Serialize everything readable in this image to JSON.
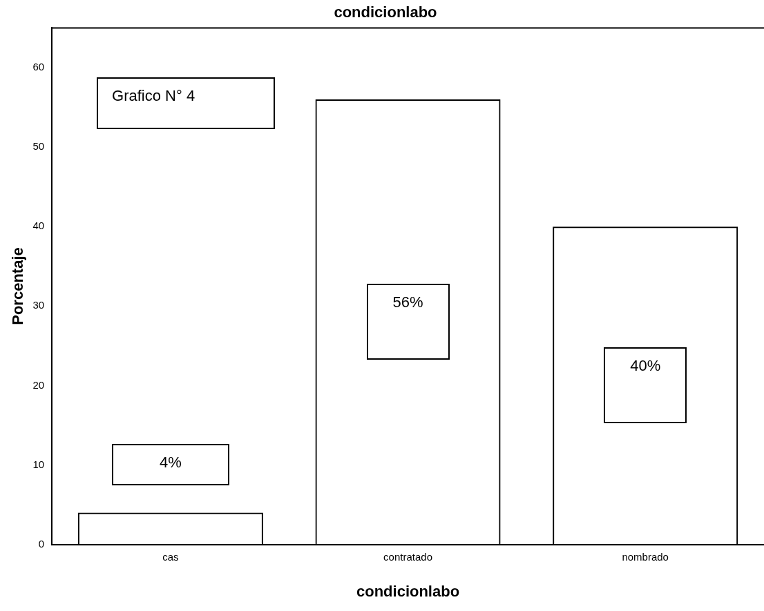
{
  "chart_data": {
    "type": "bar",
    "title": "condicionlabo",
    "xlabel": "condicionlabo",
    "ylabel": "Porcentaje",
    "categories": [
      "cas",
      "contratado",
      "nombrado"
    ],
    "values": [
      4,
      56,
      40
    ],
    "value_labels": [
      "4%",
      "56%",
      "40%"
    ],
    "color": "#000000",
    "ylim": [
      0,
      65
    ],
    "yticks": [
      0,
      10,
      20,
      30,
      40,
      50,
      60
    ],
    "grid": false,
    "legend": false,
    "annotations": [
      "Grafico N° 4"
    ]
  }
}
